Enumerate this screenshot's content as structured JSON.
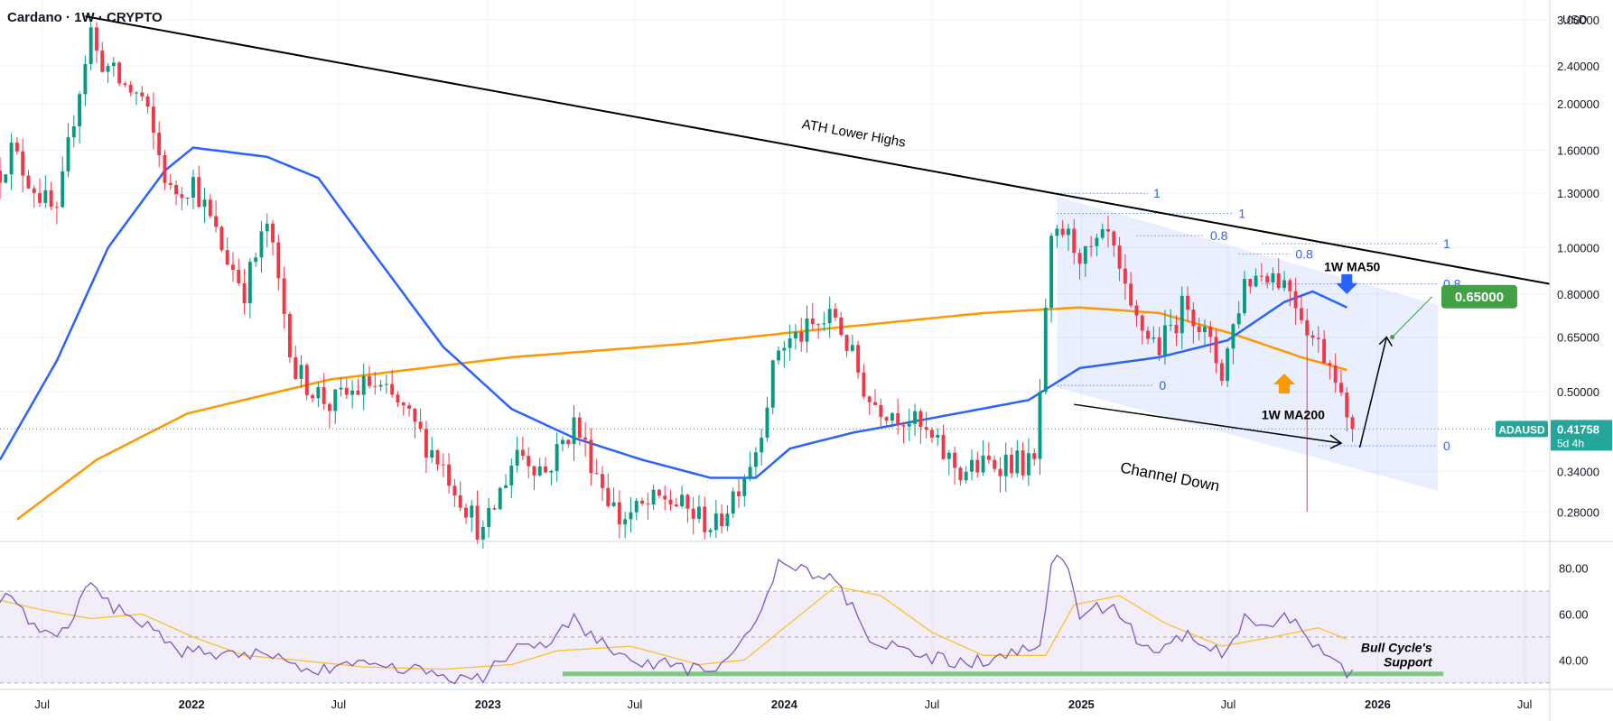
{
  "header": {
    "title": "Cardano · 1W · CRYPTO",
    "currency": "USD"
  },
  "colors": {
    "up": "#089981",
    "down": "#f23645",
    "ma50": "#2962ff",
    "ma200": "#ff9800",
    "rsi": "#7e57c2",
    "rsi_ma": "#fbc02d",
    "fib": "#2962ff",
    "support": "#81c784",
    "target": "#43a047",
    "price_tag": "#26a69a"
  },
  "chart_data": [
    {
      "type": "candlestick",
      "title": "Cardano · 1W · CRYPTO",
      "scale": "log",
      "ylim": [
        0.245,
        3.3
      ],
      "price_ticks": [
        3.0,
        2.4,
        2.0,
        1.6,
        1.3,
        1.0,
        0.8,
        0.65,
        0.5,
        0.34,
        0.28
      ],
      "price_tick_labels": [
        "3.00000",
        "2.40000",
        "2.00000",
        "1.60000",
        "1.30000",
        "1.00000",
        "0.80000",
        "0.65000",
        "0.50000",
        "0.34000",
        "0.28000"
      ],
      "xlim": [
        "2021-05-10",
        "2026-08-01"
      ],
      "time_ticks": [
        {
          "date": "2021-07-01",
          "label": "Jul"
        },
        {
          "date": "2022-01-01",
          "label": "2022"
        },
        {
          "date": "2022-07-01",
          "label": "Jul"
        },
        {
          "date": "2023-01-01",
          "label": "2023"
        },
        {
          "date": "2023-07-01",
          "label": "Jul"
        },
        {
          "date": "2024-01-01",
          "label": "2024"
        },
        {
          "date": "2024-07-01",
          "label": "Jul"
        },
        {
          "date": "2025-01-01",
          "label": "2025"
        },
        {
          "date": "2025-07-01",
          "label": "Jul"
        },
        {
          "date": "2026-01-01",
          "label": "2026"
        },
        {
          "date": "2026-07-01",
          "label": "Jul"
        }
      ],
      "price_anchors": [
        [
          "2021-05-10",
          1.45
        ],
        [
          "2021-05-24",
          1.6
        ],
        [
          "2021-06-14",
          1.4
        ],
        [
          "2021-07-19",
          1.15
        ],
        [
          "2021-08-09",
          1.9
        ],
        [
          "2021-08-30",
          2.85
        ],
        [
          "2021-09-06",
          2.55
        ],
        [
          "2021-10-04",
          2.22
        ],
        [
          "2021-11-01",
          2.05
        ],
        [
          "2021-12-06",
          1.3
        ],
        [
          "2022-01-03",
          1.38
        ],
        [
          "2022-02-07",
          1.0
        ],
        [
          "2022-03-07",
          0.82
        ],
        [
          "2022-04-04",
          1.12
        ],
        [
          "2022-05-09",
          0.55
        ],
        [
          "2022-06-20",
          0.47
        ],
        [
          "2022-08-08",
          0.52
        ],
        [
          "2022-09-12",
          0.47
        ],
        [
          "2022-11-07",
          0.35
        ],
        [
          "2022-12-26",
          0.25
        ],
        [
          "2023-02-06",
          0.38
        ],
        [
          "2023-03-13",
          0.34
        ],
        [
          "2023-04-17",
          0.43
        ],
        [
          "2023-06-12",
          0.27
        ],
        [
          "2023-08-07",
          0.3
        ],
        [
          "2023-10-09",
          0.26
        ],
        [
          "2023-11-27",
          0.38
        ],
        [
          "2023-12-25",
          0.62
        ],
        [
          "2024-03-04",
          0.72
        ],
        [
          "2024-04-15",
          0.48
        ],
        [
          "2024-06-03",
          0.44
        ],
        [
          "2024-08-05",
          0.34
        ],
        [
          "2024-09-30",
          0.36
        ],
        [
          "2024-11-04",
          0.35
        ],
        [
          "2024-11-25",
          1.0
        ],
        [
          "2024-12-09",
          1.08
        ],
        [
          "2025-01-06",
          0.95
        ],
        [
          "2025-02-03",
          1.05
        ],
        [
          "2025-03-03",
          0.72
        ],
        [
          "2025-04-07",
          0.62
        ],
        [
          "2025-05-12",
          0.78
        ],
        [
          "2025-06-23",
          0.55
        ],
        [
          "2025-07-21",
          0.85
        ],
        [
          "2025-08-18",
          0.9
        ],
        [
          "2025-09-15",
          0.83
        ],
        [
          "2025-10-13",
          0.65
        ],
        [
          "2025-11-10",
          0.56
        ],
        [
          "2025-11-24",
          0.42
        ],
        [
          "2025-12-01",
          0.41758
        ]
      ],
      "ma50_anchors": [
        [
          "2021-05-10",
          0.36
        ],
        [
          "2021-07-19",
          0.58
        ],
        [
          "2021-09-20",
          1.0
        ],
        [
          "2021-11-29",
          1.45
        ],
        [
          "2022-01-03",
          1.62
        ],
        [
          "2022-04-04",
          1.55
        ],
        [
          "2022-06-06",
          1.4
        ],
        [
          "2022-08-08",
          1.0
        ],
        [
          "2022-11-07",
          0.62
        ],
        [
          "2023-01-30",
          0.46
        ],
        [
          "2023-04-17",
          0.4
        ],
        [
          "2023-07-10",
          0.36
        ],
        [
          "2023-10-02",
          0.33
        ],
        [
          "2023-11-27",
          0.33
        ],
        [
          "2024-01-08",
          0.38
        ],
        [
          "2024-03-25",
          0.41
        ],
        [
          "2024-07-01",
          0.44
        ],
        [
          "2024-10-28",
          0.48
        ],
        [
          "2024-12-30",
          0.56
        ],
        [
          "2025-04-07",
          0.59
        ],
        [
          "2025-06-30",
          0.64
        ],
        [
          "2025-09-08",
          0.77
        ],
        [
          "2025-10-13",
          0.81
        ],
        [
          "2025-11-24",
          0.75
        ]
      ],
      "ma200_anchors": [
        [
          "2021-05-31",
          0.27
        ],
        [
          "2021-09-06",
          0.36
        ],
        [
          "2021-12-27",
          0.45
        ],
        [
          "2022-06-20",
          0.53
        ],
        [
          "2023-01-30",
          0.59
        ],
        [
          "2023-09-04",
          0.63
        ],
        [
          "2024-03-04",
          0.68
        ],
        [
          "2024-09-02",
          0.73
        ],
        [
          "2024-12-30",
          0.75
        ],
        [
          "2025-04-07",
          0.73
        ],
        [
          "2025-07-07",
          0.66
        ],
        [
          "2025-09-29",
          0.59
        ],
        [
          "2025-11-24",
          0.555
        ]
      ],
      "ath_trendline": [
        [
          "2021-08-23",
          3.05
        ],
        [
          "2026-08-01",
          0.84
        ]
      ],
      "channel": {
        "upper": [
          [
            "2024-12-02",
            1.28
          ],
          [
            "2026-03-16",
            0.76
          ]
        ],
        "lower": [
          [
            "2024-12-02",
            0.51
          ],
          [
            "2026-03-16",
            0.31
          ]
        ]
      },
      "fib_levels": [
        {
          "date_from": "2024-12-02",
          "date_to": "2025-03-24",
          "price": 1.3,
          "label": "1"
        },
        {
          "date_from": "2024-12-02",
          "date_to": "2025-07-07",
          "price": 1.18,
          "label": "1"
        },
        {
          "date_from": "2025-03-10",
          "date_to": "2025-06-02",
          "price": 1.06,
          "label": "0.8"
        },
        {
          "date_from": "2025-08-11",
          "date_to": "2026-03-16",
          "price": 1.02,
          "label": "1"
        },
        {
          "date_from": "2025-07-14",
          "date_to": "2025-09-15",
          "price": 0.97,
          "label": "0.8"
        },
        {
          "date_from": "2025-08-11",
          "date_to": "2026-03-16",
          "price": 0.84,
          "label": "0.8"
        },
        {
          "date_from": "2024-12-02",
          "date_to": "2025-03-31",
          "price": 0.515,
          "label": "0"
        },
        {
          "date_from": "2025-10-20",
          "date_to": "2026-03-16",
          "price": 0.385,
          "label": "0"
        }
      ],
      "annotations": [
        {
          "date": "2024-01-22",
          "price": 1.78,
          "text": "ATH Lower Highs"
        },
        {
          "date": "2025-02-17",
          "price": 0.4,
          "text": "Channel Down"
        },
        {
          "date": "2025-10-27",
          "price": 0.87,
          "text": "1W MA50"
        },
        {
          "date": "2025-08-11",
          "price": 0.495,
          "text": "1W MA200"
        },
        {
          "date": "2026-03-16",
          "price": 0.67,
          "text": "0.65000"
        },
        {
          "date": "2026-02-02",
          "price": 0.58,
          "text": "Bull Cycle's\nSupport"
        }
      ],
      "projection": [
        [
          "2025-12-01",
          0.385
        ],
        [
          "2026-01-12",
          0.65
        ]
      ],
      "target_line": [
        [
          "2026-01-19",
          0.65
        ],
        [
          "2026-03-09",
          0.79
        ]
      ],
      "current_price": {
        "value": 0.41758,
        "label": "ADAUSD",
        "price_text": "0.41758",
        "countdown": "5d 4h"
      },
      "target_price": {
        "value": 0.65,
        "label": "0.65000"
      }
    },
    {
      "type": "line",
      "name": "RSI",
      "ylim": [
        28,
        90
      ],
      "ticks": [
        80,
        60,
        40
      ],
      "tick_labels": [
        "80.00",
        "60.00",
        "40.00"
      ],
      "band": [
        30,
        70
      ],
      "mid": 50,
      "support_level": 34,
      "support_from": "2023-04-03",
      "support_to": "2026-03-23",
      "support_label": "Bull Cycle's\nSupport",
      "rsi_anchors": [
        [
          "2021-05-10",
          68
        ],
        [
          "2021-05-24",
          66
        ],
        [
          "2021-06-14",
          58
        ],
        [
          "2021-07-19",
          50
        ],
        [
          "2021-08-02",
          56
        ],
        [
          "2021-08-30",
          74
        ],
        [
          "2021-09-20",
          64
        ],
        [
          "2021-10-18",
          60
        ],
        [
          "2021-11-22",
          52
        ],
        [
          "2021-12-20",
          44
        ],
        [
          "2022-02-14",
          42
        ],
        [
          "2022-04-04",
          44
        ],
        [
          "2022-05-16",
          36
        ],
        [
          "2022-06-20",
          35
        ],
        [
          "2022-08-01",
          38
        ],
        [
          "2022-09-26",
          36
        ],
        [
          "2022-11-07",
          33
        ],
        [
          "2022-12-26",
          31
        ],
        [
          "2023-02-06",
          48
        ],
        [
          "2023-03-13",
          44
        ],
        [
          "2023-04-17",
          58
        ],
        [
          "2023-06-12",
          40
        ],
        [
          "2023-08-07",
          38
        ],
        [
          "2023-10-09",
          34
        ],
        [
          "2023-12-04",
          60
        ],
        [
          "2023-12-25",
          83
        ],
        [
          "2024-01-08",
          80
        ],
        [
          "2024-03-04",
          74
        ],
        [
          "2024-04-15",
          50
        ],
        [
          "2024-06-03",
          44
        ],
        [
          "2024-08-05",
          38
        ],
        [
          "2024-10-07",
          42
        ],
        [
          "2024-11-11",
          46
        ],
        [
          "2024-11-25",
          82
        ],
        [
          "2024-12-09",
          86
        ],
        [
          "2024-12-30",
          60
        ],
        [
          "2025-02-03",
          64
        ],
        [
          "2025-03-10",
          50
        ],
        [
          "2025-04-07",
          45
        ],
        [
          "2025-05-12",
          52
        ],
        [
          "2025-06-23",
          42
        ],
        [
          "2025-07-21",
          58
        ],
        [
          "2025-08-18",
          56
        ],
        [
          "2025-09-15",
          58
        ],
        [
          "2025-10-13",
          46
        ],
        [
          "2025-11-10",
          40
        ],
        [
          "2025-11-24",
          34
        ],
        [
          "2025-12-01",
          35
        ]
      ],
      "rsi_ma_anchors": [
        [
          "2021-05-10",
          66
        ],
        [
          "2021-06-28",
          62
        ],
        [
          "2021-08-30",
          58
        ],
        [
          "2021-11-01",
          60
        ],
        [
          "2022-01-03",
          50
        ],
        [
          "2022-03-07",
          42
        ],
        [
          "2022-05-09",
          40
        ],
        [
          "2022-08-01",
          37
        ],
        [
          "2022-11-07",
          36
        ],
        [
          "2023-01-30",
          38
        ],
        [
          "2023-03-27",
          44
        ],
        [
          "2023-06-26",
          46
        ],
        [
          "2023-09-18",
          38
        ],
        [
          "2023-11-13",
          40
        ],
        [
          "2024-01-15",
          58
        ],
        [
          "2024-03-04",
          72
        ],
        [
          "2024-04-29",
          68
        ],
        [
          "2024-07-01",
          52
        ],
        [
          "2024-09-02",
          42
        ],
        [
          "2024-11-18",
          42
        ],
        [
          "2024-12-23",
          64
        ],
        [
          "2025-02-17",
          68
        ],
        [
          "2025-04-14",
          56
        ],
        [
          "2025-06-23",
          46
        ],
        [
          "2025-08-25",
          50
        ],
        [
          "2025-10-20",
          54
        ],
        [
          "2025-11-24",
          49
        ]
      ]
    }
  ]
}
